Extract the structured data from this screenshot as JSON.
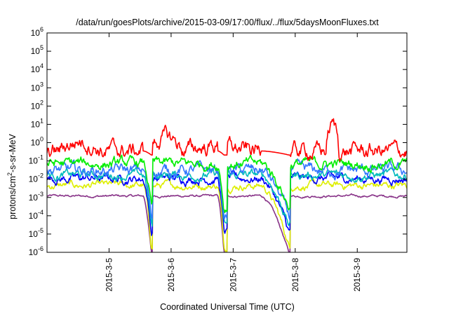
{
  "chart_data": {
    "type": "line",
    "title": "/data/run/goesPlots/archive/2015-03-09/17:00/flux/../flux/5daysMoonFluxes.txt",
    "xlabel": "Coordinated Universal Time (UTC)",
    "ylabel_parts": {
      "before": "protons/cm",
      "sup": "2",
      "after": "-s-sr-MeV"
    },
    "x_range_days": [
      0,
      5.8
    ],
    "x_ticks": [
      {
        "day": 1,
        "label": "2015-3-5"
      },
      {
        "day": 2,
        "label": "2015-3-6"
      },
      {
        "day": 3,
        "label": "2015-3-7"
      },
      {
        "day": 4,
        "label": "2015-3-8"
      },
      {
        "day": 5,
        "label": "2015-3-9"
      }
    ],
    "y_scale": "log",
    "ylim_exp": [
      -6,
      6
    ],
    "y_ticks": [
      {
        "exp": -6,
        "base": "10",
        "sup": "-6"
      },
      {
        "exp": -5,
        "base": "10",
        "sup": "-5"
      },
      {
        "exp": -4,
        "base": "10",
        "sup": "-4"
      },
      {
        "exp": -3,
        "base": "10",
        "sup": "-3"
      },
      {
        "exp": -2,
        "base": "10",
        "sup": "-2"
      },
      {
        "exp": -1,
        "base": "10",
        "sup": "-1"
      },
      {
        "exp": 0,
        "base": "10",
        "sup": "0"
      },
      {
        "exp": 1,
        "base": "10",
        "sup": "1"
      },
      {
        "exp": 2,
        "base": "10",
        "sup": "2"
      },
      {
        "exp": 3,
        "base": "10",
        "sup": "3"
      },
      {
        "exp": 4,
        "base": "10",
        "sup": "4"
      },
      {
        "exp": 5,
        "base": "10",
        "sup": "5"
      },
      {
        "exp": 6,
        "base": "10",
        "sup": "6"
      }
    ],
    "grid": false,
    "series": [
      {
        "color": "#ff0000",
        "base": 0.35,
        "noise": 0.55,
        "dropMin": 0.15,
        "extra": [
          {
            "x0": 0.2,
            "x1": 0.9,
            "factor": 4
          },
          {
            "x0": 1.6,
            "x1": 2.2,
            "factor": 6
          },
          {
            "x0": 2.2,
            "x1": 3.2,
            "factor": 2
          },
          {
            "x0": 4.5,
            "x1": 4.7,
            "factor": 30
          }
        ]
      },
      {
        "color": "#00ee00",
        "base": 0.07,
        "noise": 0.35,
        "dropMin": 0.0003,
        "extra": []
      },
      {
        "color": "#3377ff",
        "base": 0.03,
        "noise": 0.4,
        "dropMin": 8e-05,
        "extra": []
      },
      {
        "color": "#00bbbb",
        "base": 0.017,
        "noise": 0.3,
        "dropMin": 3e-05,
        "extra": []
      },
      {
        "color": "#0000ff",
        "base": 0.011,
        "noise": 0.3,
        "dropMin": 1.2e-05,
        "extra": []
      },
      {
        "color": "#ddee00",
        "base": 0.0045,
        "noise": 0.25,
        "dropMin": 2e-06,
        "extra": []
      },
      {
        "color": "#883388",
        "base": 0.0012,
        "noise": 0.08,
        "dropMin": 9e-07,
        "extra": []
      }
    ],
    "drops": [
      {
        "start": 1.55,
        "bottom": 1.68,
        "recover": 1.7
      },
      {
        "start": 2.75,
        "bottom": 2.85,
        "recover": 2.9
      },
      {
        "start": 3.45,
        "bottom": 3.9,
        "recover": 3.92
      }
    ]
  }
}
